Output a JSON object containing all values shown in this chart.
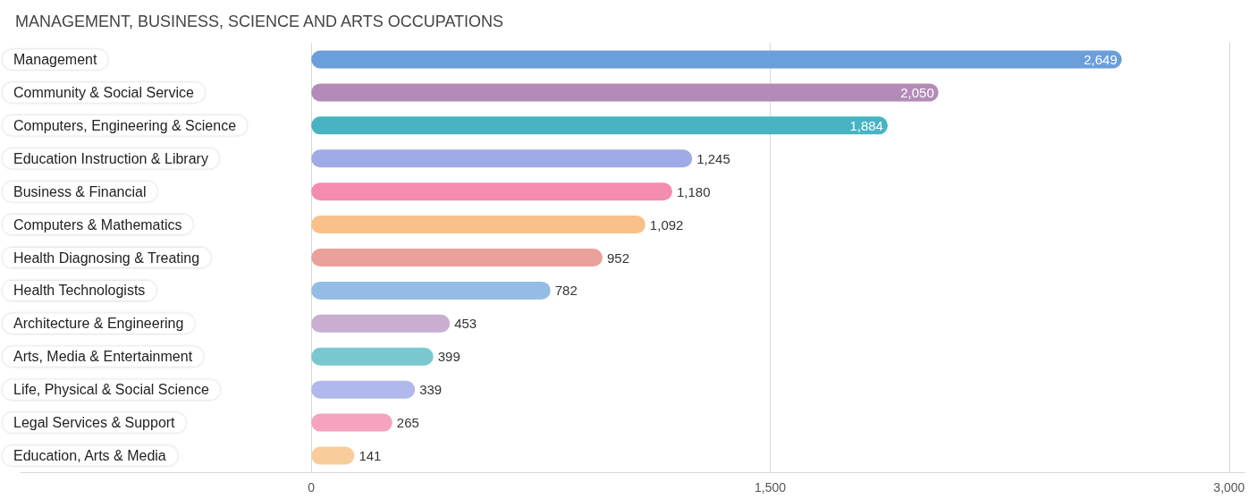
{
  "chart_data": {
    "type": "bar",
    "orientation": "horizontal",
    "title": "MANAGEMENT, BUSINESS, SCIENCE AND ARTS OCCUPATIONS",
    "categories": [
      "Management",
      "Community & Social Service",
      "Computers, Engineering & Science",
      "Education Instruction & Library",
      "Business & Financial",
      "Computers & Mathematics",
      "Health Diagnosing & Treating",
      "Health Technologists",
      "Architecture & Engineering",
      "Arts, Media & Entertainment",
      "Life, Physical & Social Science",
      "Legal Services & Support",
      "Education, Arts & Media"
    ],
    "values": [
      2649,
      2050,
      1884,
      1245,
      1180,
      1092,
      952,
      782,
      453,
      399,
      339,
      265,
      141
    ],
    "colors": [
      "#6a9fdc",
      "#b48bb8",
      "#47b3c3",
      "#a0aae6",
      "#f48caf",
      "#f9c08a",
      "#eba19b",
      "#94bde6",
      "#c9aed2",
      "#79c8cf",
      "#b1b8ec",
      "#f6a3bf",
      "#f9cc9c"
    ],
    "value_labels": [
      "2,649",
      "2,050",
      "1,884",
      "1,245",
      "1,180",
      "1,092",
      "952",
      "782",
      "453",
      "399",
      "339",
      "265",
      "141"
    ],
    "xlim": [
      -950,
      3050
    ],
    "xticks": [
      0,
      {
        "value": 1500,
        "label": "1,500"
      },
      {
        "value": 3000,
        "label": "3,000"
      }
    ],
    "grid": "x"
  }
}
